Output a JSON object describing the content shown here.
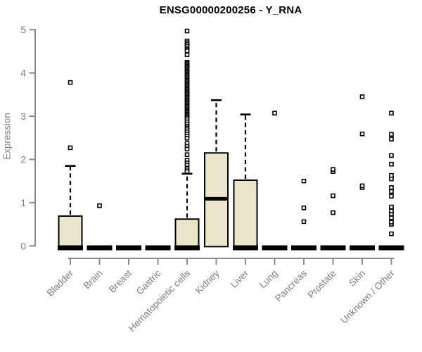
{
  "title": "ENSG00000200256 - Y_RNA",
  "y_axis": {
    "label": "Expression",
    "tick_labels": [
      "0",
      "1",
      "2",
      "3",
      "4",
      "5"
    ]
  },
  "colors": {
    "background": "#ffffff",
    "box_fill": "#ebe6cb",
    "box_border": "#000000",
    "median": "#000000",
    "outlier": "#000000",
    "axis_line": "#8a8a8a",
    "tick_text": "#7f7f7f",
    "title_text": "#000000"
  },
  "chart_data": {
    "type": "boxplot",
    "title": "ENSG00000200256 - Y_RNA",
    "xlabel": "",
    "ylabel": "Expression",
    "ylim": [
      0,
      5
    ],
    "yticks": [
      0,
      1,
      2,
      3,
      4,
      5
    ],
    "grid": false,
    "legend": false,
    "categories": [
      "Bladder",
      "Brain",
      "Breast",
      "Gastric",
      "Hematopoietic cells",
      "Kidney",
      "Liver",
      "Lung",
      "Pancreas",
      "Prostate",
      "Skin",
      "Unknown / Other"
    ],
    "boxes": [
      {
        "label": "Bladder",
        "min": 0,
        "q1": 0,
        "median": 0,
        "q3": 0.69,
        "max": 1.85,
        "outliers": [
          2.27,
          3.78
        ]
      },
      {
        "label": "Brain",
        "min": 0,
        "q1": 0,
        "median": 0,
        "q3": 0,
        "max": 0,
        "outliers": [
          0.93
        ]
      },
      {
        "label": "Breast",
        "min": 0,
        "q1": 0,
        "median": 0,
        "q3": 0,
        "max": 0,
        "outliers": []
      },
      {
        "label": "Gastric",
        "min": 0,
        "q1": 0,
        "median": 0,
        "q3": 0,
        "max": 0,
        "outliers": []
      },
      {
        "label": "Hematopoietic cells",
        "min": 0,
        "q1": 0,
        "median": 0,
        "q3": 0.62,
        "max": 1.67,
        "outliers": [
          4.97,
          4.74,
          4.7,
          4.66,
          4.62,
          4.58,
          4.54,
          4.51,
          4.42,
          4.25,
          4.22,
          4.19,
          4.16,
          4.13,
          4.1,
          4.07,
          4.04,
          4.01,
          3.98,
          3.95,
          3.92,
          3.89,
          3.86,
          3.83,
          3.8,
          3.77,
          3.74,
          3.71,
          3.68,
          3.65,
          3.62,
          3.59,
          3.56,
          3.53,
          3.5,
          3.47,
          3.44,
          3.41,
          3.38,
          3.35,
          3.32,
          3.29,
          3.26,
          3.23,
          3.2,
          3.17,
          3.14,
          3.11,
          3.08,
          3.05,
          3.02,
          2.99,
          2.96,
          2.92,
          2.87,
          2.82,
          2.77,
          2.73,
          2.69,
          2.64,
          2.59,
          2.54,
          2.49,
          2.37,
          2.3,
          2.24,
          2.11,
          1.98,
          1.92,
          1.87,
          1.8,
          1.76,
          1.72
        ]
      },
      {
        "label": "Kidney",
        "min": 0,
        "q1": 0,
        "median": 1.09,
        "q3": 2.15,
        "max": 3.37,
        "outliers": []
      },
      {
        "label": "Liver",
        "min": 0,
        "q1": 0,
        "median": 0,
        "q3": 1.52,
        "max": 3.04,
        "outliers": []
      },
      {
        "label": "Lung",
        "min": 0,
        "q1": 0,
        "median": 0,
        "q3": 0,
        "max": 0,
        "outliers": [
          3.07
        ]
      },
      {
        "label": "Pancreas",
        "min": 0,
        "q1": 0,
        "median": 0,
        "q3": 0,
        "max": 0,
        "outliers": [
          0.56,
          0.88,
          1.5
        ]
      },
      {
        "label": "Prostate",
        "min": 0,
        "q1": 0,
        "median": 0,
        "q3": 0,
        "max": 0,
        "outliers": [
          0.77,
          1.16,
          1.72,
          1.77
        ]
      },
      {
        "label": "Skin",
        "min": 0,
        "q1": 0,
        "median": 0,
        "q3": 0,
        "max": 0,
        "outliers": [
          1.35,
          1.39,
          2.59,
          3.45
        ]
      },
      {
        "label": "Unknown / Other",
        "min": 0,
        "q1": 0,
        "median": 0,
        "q3": 0,
        "max": 0,
        "outliers": [
          0.28,
          0.5,
          0.55,
          0.65,
          0.74,
          0.81,
          0.9,
          1.15,
          1.26,
          1.35,
          1.55,
          1.63,
          1.89,
          2.09,
          2.47,
          2.58,
          3.07
        ]
      }
    ]
  }
}
